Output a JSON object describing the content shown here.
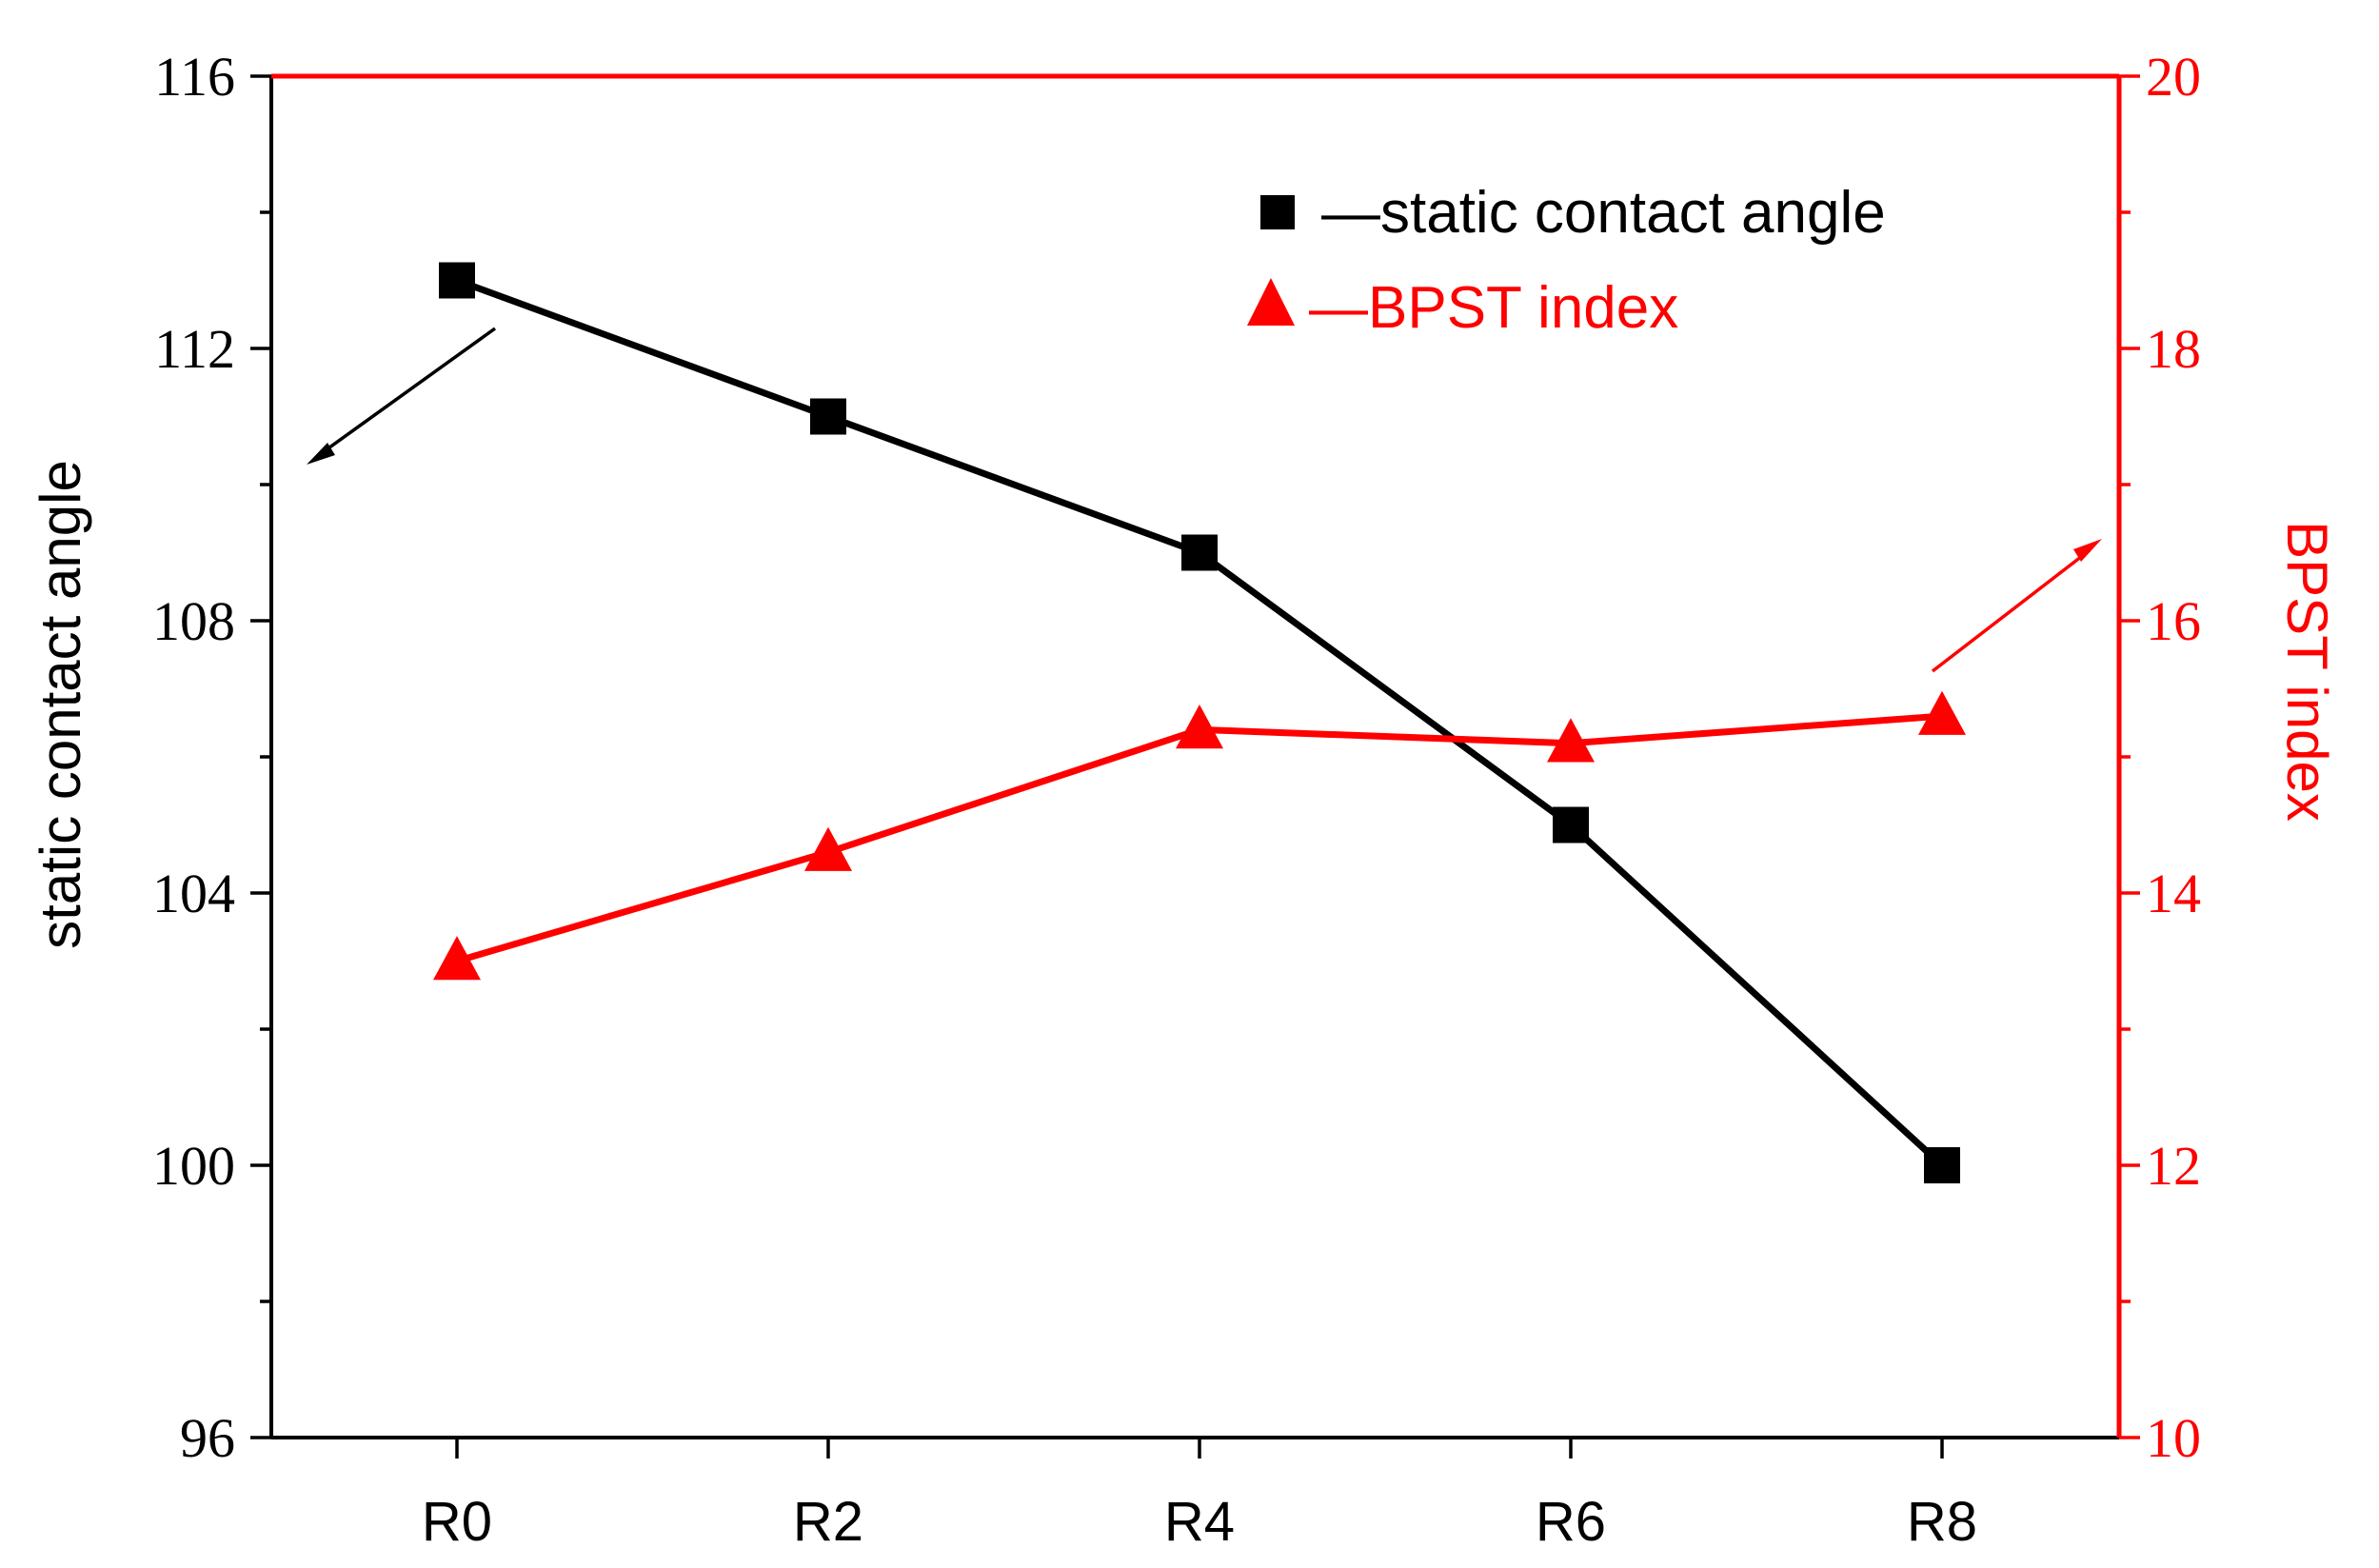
{
  "chart_data": {
    "type": "line",
    "categories": [
      "R0",
      "R2",
      "R4",
      "R6",
      "R8"
    ],
    "series": [
      {
        "name": "static contact angle",
        "axis": "left",
        "marker": "square",
        "color": "#000000",
        "values": [
          113,
          111,
          109,
          105,
          100
        ]
      },
      {
        "name": "BPST index",
        "axis": "right",
        "marker": "triangle",
        "color": "#ff0000",
        "values": [
          13.5,
          14.3,
          15.2,
          15.1,
          15.3
        ]
      }
    ],
    "y_left": {
      "label": "static contact angle",
      "ylim": [
        96,
        116
      ],
      "ticks": [
        "96",
        "100",
        "104",
        "108",
        "112",
        "116"
      ],
      "tick_values": [
        96,
        100,
        104,
        108,
        112,
        116
      ],
      "minor_step": 2,
      "color": "#000000"
    },
    "y_right": {
      "label": "BPST index",
      "ylim": [
        10,
        20
      ],
      "ticks": [
        "10",
        "12",
        "14",
        "16",
        "18",
        "20"
      ],
      "tick_values": [
        10,
        12,
        14,
        16,
        18,
        20
      ],
      "minor_step": 1,
      "color": "#ff0000"
    },
    "xlabel": "",
    "title": "",
    "grid": false,
    "legend": {
      "position": "top-right",
      "entries": [
        "—static contact angle",
        "—BPST index"
      ]
    }
  }
}
